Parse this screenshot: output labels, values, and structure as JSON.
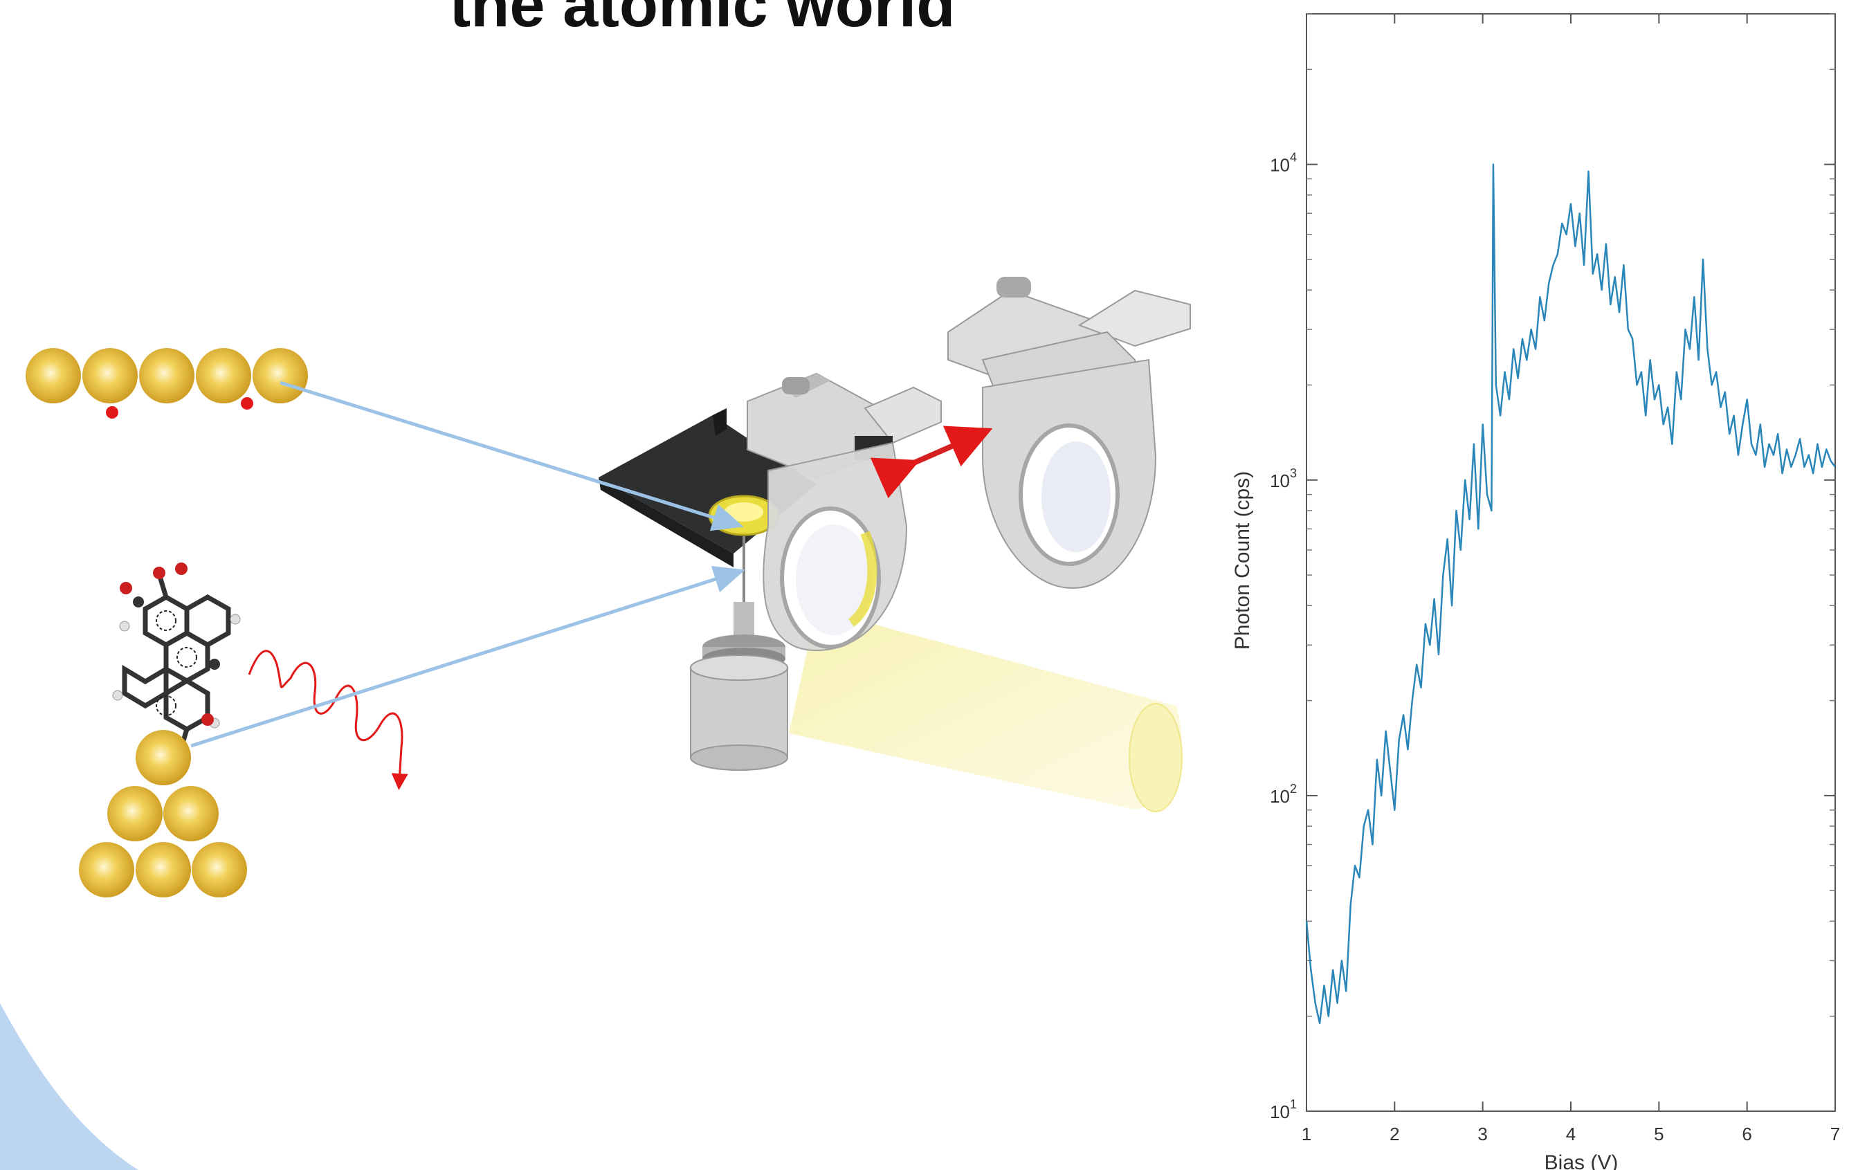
{
  "slide": {
    "title": "the atomic world"
  },
  "colors": {
    "gold": "#e2b32c",
    "arrow_blue": "#9cc3e6",
    "plot_line": "#2a86b8",
    "red": "#e31818",
    "accent_blob": "#bcd6f2"
  },
  "chart_data": {
    "type": "line",
    "title": "",
    "xlabel": "Bias (V)",
    "ylabel": "Photon Count (cps)",
    "xlim": [
      1,
      7
    ],
    "ylim": [
      10,
      30000
    ],
    "yscale": "log",
    "grid": false,
    "xticks": [
      "1",
      "2",
      "3",
      "4",
      "5",
      "6",
      "7"
    ],
    "yticks": [
      {
        "value": 10,
        "base": "10",
        "exp": "1"
      },
      {
        "value": 100,
        "base": "10",
        "exp": "2"
      },
      {
        "value": 1000,
        "base": "10",
        "exp": "3"
      },
      {
        "value": 10000,
        "base": "10",
        "exp": "4"
      }
    ],
    "series": [
      {
        "x": [
          1.0,
          1.05,
          1.1,
          1.15,
          1.2,
          1.25,
          1.3,
          1.35,
          1.4,
          1.45,
          1.5,
          1.55,
          1.6,
          1.65,
          1.7,
          1.75,
          1.8,
          1.85,
          1.9,
          1.95,
          2.0,
          2.05,
          2.1,
          2.15,
          2.2,
          2.25,
          2.3,
          2.35,
          2.4,
          2.45,
          2.5,
          2.55,
          2.6,
          2.65,
          2.7,
          2.75,
          2.8,
          2.85,
          2.9,
          2.95,
          3.0,
          3.05,
          3.1,
          3.12,
          3.15,
          3.2,
          3.25,
          3.3,
          3.35,
          3.4,
          3.45,
          3.5,
          3.55,
          3.6,
          3.65,
          3.7,
          3.75,
          3.8,
          3.85,
          3.9,
          3.95,
          4.0,
          4.05,
          4.1,
          4.15,
          4.2,
          4.25,
          4.3,
          4.35,
          4.4,
          4.45,
          4.5,
          4.55,
          4.6,
          4.65,
          4.7,
          4.75,
          4.8,
          4.85,
          4.9,
          4.95,
          5.0,
          5.05,
          5.1,
          5.15,
          5.2,
          5.25,
          5.3,
          5.35,
          5.4,
          5.45,
          5.5,
          5.55,
          5.6,
          5.65,
          5.7,
          5.75,
          5.8,
          5.85,
          5.9,
          5.95,
          6.0,
          6.05,
          6.1,
          6.15,
          6.2,
          6.25,
          6.3,
          6.35,
          6.4,
          6.45,
          6.5,
          6.55,
          6.6,
          6.65,
          6.7,
          6.75,
          6.8,
          6.85,
          6.9,
          6.95,
          7.0
        ],
        "y": [
          40,
          28,
          22,
          19,
          25,
          20,
          28,
          22,
          30,
          24,
          45,
          60,
          55,
          80,
          90,
          70,
          130,
          100,
          160,
          120,
          90,
          150,
          180,
          140,
          200,
          260,
          220,
          350,
          300,
          420,
          280,
          500,
          650,
          400,
          800,
          600,
          1000,
          750,
          1300,
          700,
          1500,
          900,
          800,
          10000,
          2000,
          1600,
          2200,
          1800,
          2600,
          2100,
          2800,
          2400,
          3000,
          2600,
          3800,
          3200,
          4200,
          4800,
          5200,
          6500,
          6000,
          7500,
          5500,
          7000,
          4800,
          9500,
          4500,
          5200,
          4000,
          5600,
          3600,
          4400,
          3400,
          4800,
          3000,
          2800,
          2000,
          2200,
          1600,
          2400,
          1800,
          2000,
          1500,
          1700,
          1300,
          2200,
          1800,
          3000,
          2600,
          3800,
          2400,
          5000,
          2600,
          2000,
          2200,
          1700,
          1900,
          1400,
          1600,
          1200,
          1500,
          1800,
          1300,
          1200,
          1500,
          1100,
          1300,
          1200,
          1400,
          1050,
          1250,
          1100,
          1200,
          1350,
          1100,
          1200,
          1050,
          1300,
          1100,
          1250,
          1150,
          1100
        ]
      }
    ]
  }
}
